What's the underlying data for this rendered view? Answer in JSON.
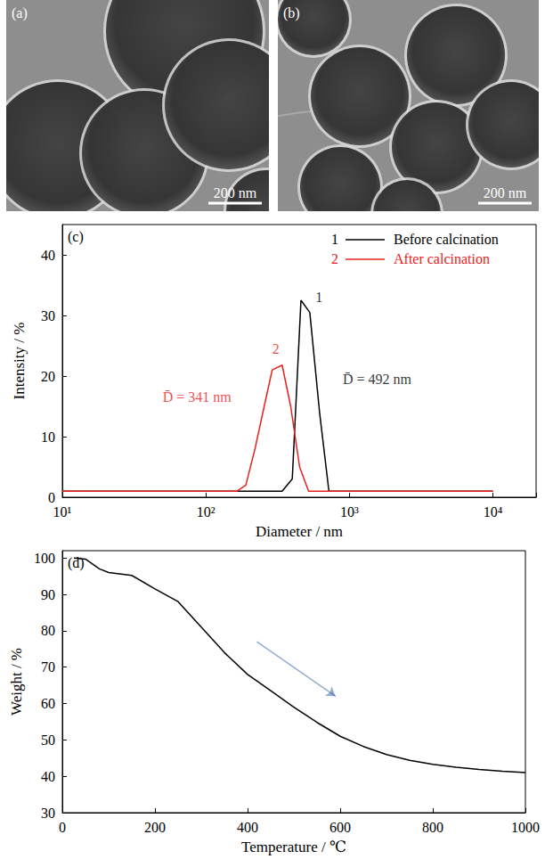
{
  "images": [
    {
      "label": "(a)",
      "scale_bar": "200 nm"
    },
    {
      "label": "(b)",
      "scale_bar": "200 nm"
    }
  ],
  "chart_data": [
    {
      "type": "line",
      "panel_label": "(c)",
      "x_label": "Diameter / nm",
      "y_label": "Intensity / %",
      "log": "x",
      "grid": false,
      "legend": "upper right",
      "xlim": [
        10,
        20000
      ],
      "xticks": [
        {
          "value": 10,
          "label": "10¹"
        },
        {
          "value": 100,
          "label": "10²"
        },
        {
          "value": 1000,
          "label": "10³"
        },
        {
          "value": 10000,
          "label": "10⁴"
        }
      ],
      "ylim": [
        0,
        45
      ],
      "yticks": [
        0,
        10,
        20,
        30,
        40
      ],
      "series": [
        {
          "name": "Before calcination",
          "label": "1",
          "color": "#000000",
          "x": [
            10,
            340,
            400,
            460,
            530,
            620,
            720,
            10000
          ],
          "values": [
            1,
            1,
            3,
            32.5,
            30.5,
            14,
            1,
            1
          ]
        },
        {
          "name": "After calcination",
          "label": "2",
          "color": "#e8211c",
          "x": [
            10,
            165,
            190,
            220,
            255,
            290,
            340,
            390,
            450,
            520,
            10000
          ],
          "values": [
            1,
            1,
            2,
            8,
            15,
            21,
            21.8,
            15,
            5,
            1,
            1
          ]
        }
      ],
      "annotations": [
        {
          "text": "1",
          "x": 580,
          "y": 33,
          "color": "#000000"
        },
        {
          "text": "D̄ = 492 nm",
          "x": 900,
          "y": 19.5,
          "color": "#000000"
        },
        {
          "text": "2",
          "x": 290,
          "y": 24.5,
          "color": "#e8211c"
        },
        {
          "text": "D̄ = 341 nm",
          "x": 50,
          "y": 16.5,
          "color": "#e8211c"
        }
      ]
    },
    {
      "type": "line",
      "panel_label": "(d)",
      "x_label": "Temperature / ℃",
      "y_label": "Weight / %",
      "grid": false,
      "xlim": [
        0,
        1000
      ],
      "xticks": [
        0,
        200,
        400,
        600,
        800,
        1000
      ],
      "ylim": [
        30,
        102
      ],
      "yticks": [
        30,
        40,
        50,
        60,
        70,
        80,
        90,
        100
      ],
      "series": [
        {
          "color": "#000000",
          "x": [
            25,
            50,
            80,
            100,
            150,
            200,
            250,
            300,
            350,
            400,
            450,
            500,
            550,
            600,
            650,
            700,
            750,
            800,
            850,
            900,
            950,
            1000
          ],
          "values": [
            100,
            99.7,
            97,
            96,
            95.2,
            91.5,
            88,
            81,
            74,
            68,
            63.5,
            59,
            54.8,
            51,
            48.2,
            46,
            44.4,
            43.3,
            42.5,
            41.9,
            41.4,
            41
          ]
        }
      ],
      "arrows": [
        {
          "from": [
            420,
            77
          ],
          "to": [
            590,
            62
          ],
          "color": "#2b5aa8"
        }
      ]
    }
  ]
}
